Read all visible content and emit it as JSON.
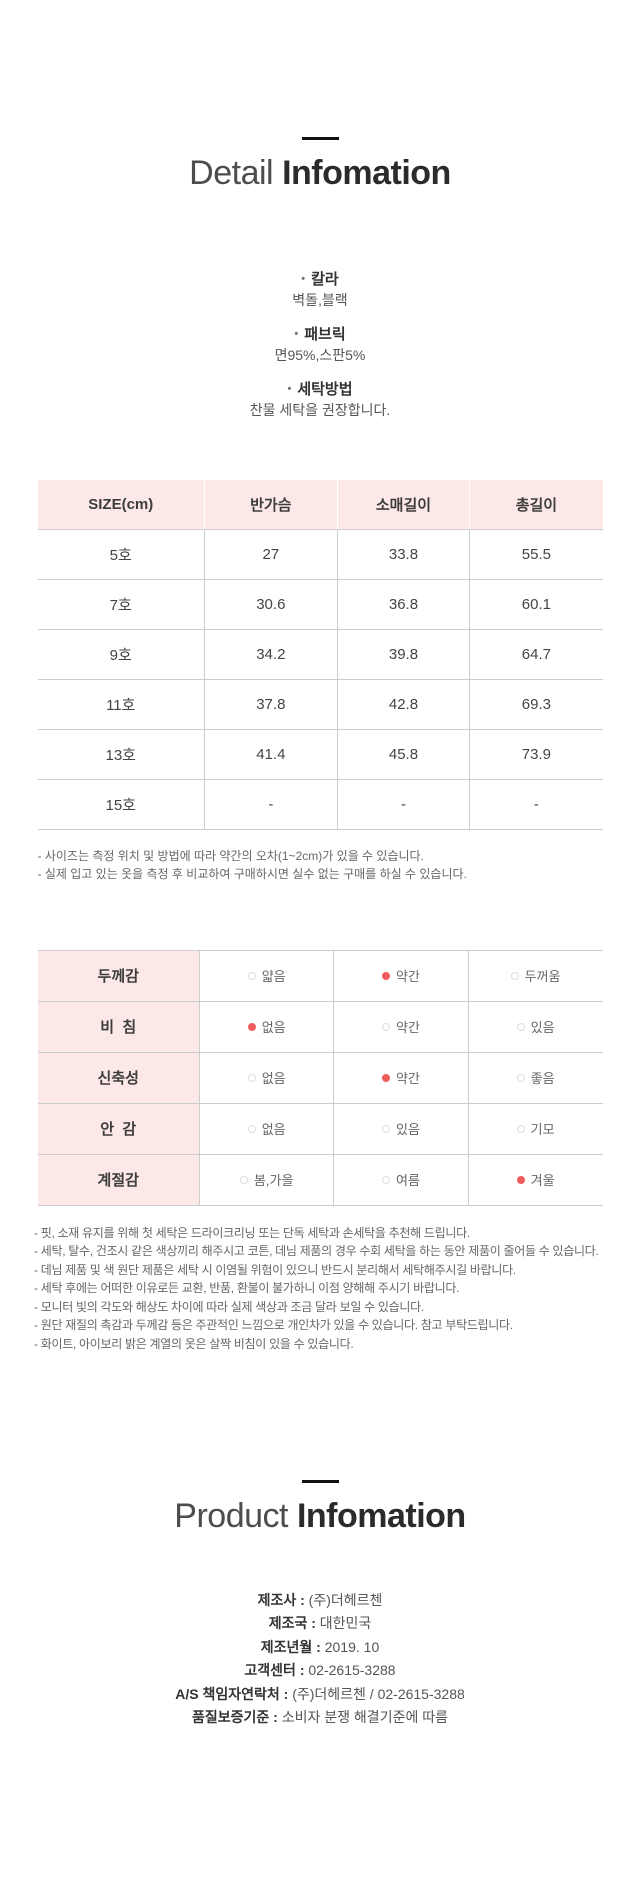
{
  "ui": {
    "bullet_char": "•"
  },
  "detail_section": {
    "title_light": "Detail",
    "title_bold": "Infomation",
    "bullets": [
      {
        "label": "칼라",
        "value": "벽돌,블랙"
      },
      {
        "label": "패브릭",
        "value": "면95%,스판5%"
      },
      {
        "label": "세탁방법",
        "value": "찬물 세탁을 권장합니다."
      }
    ]
  },
  "size_table": {
    "headers": [
      "SIZE(cm)",
      "반가슴",
      "소매길이",
      "총길이"
    ],
    "rows": [
      [
        "5호",
        "27",
        "33.8",
        "55.5"
      ],
      [
        "7호",
        "30.6",
        "36.8",
        "60.1"
      ],
      [
        "9호",
        "34.2",
        "39.8",
        "64.7"
      ],
      [
        "11호",
        "37.8",
        "42.8",
        "69.3"
      ],
      [
        "13호",
        "41.4",
        "45.8",
        "73.9"
      ],
      [
        "15호",
        "-",
        "-",
        "-"
      ]
    ],
    "notes": [
      "- 사이즈는 측정 위치 및 방법에 따라 약간의 오차(1~2cm)가 있을 수 있습니다.",
      "- 실제 입고 있는 옷을 측정 후 비교하여 구매하시면 실수 없는 구매를 하실 수 있습니다."
    ]
  },
  "attribute_table": {
    "rows": [
      {
        "label": "두께감",
        "options": [
          "얇음",
          "약간",
          "두꺼움"
        ],
        "selected": 1
      },
      {
        "label": "비  침",
        "options": [
          "없음",
          "약간",
          "있음"
        ],
        "selected": 0
      },
      {
        "label": "신축성",
        "options": [
          "없음",
          "약간",
          "좋음"
        ],
        "selected": 1
      },
      {
        "label": "안  감",
        "options": [
          "없음",
          "있음",
          "기모"
        ],
        "selected": null
      },
      {
        "label": "계절감",
        "options": [
          "봄,가을",
          "여름",
          "겨울"
        ],
        "selected": 2
      }
    ],
    "notes": [
      "- 핏, 소재 유지를 위해 첫 세탁은 드라이크리닝 또는 단독 세탁과 손세탁을 추천해 드립니다.",
      "- 세탁, 탈수, 건조시 같은 색상끼리 해주시고 코튼, 데님 제품의 경우 수회 세탁을 하는 동안 제품이 줄어들 수 있습니다.",
      "- 데님 제품 및 색 원단 제품은 세탁 시 이염될 위험이 있으니 반드시 분리해서 세탁해주시길 바랍니다.",
      "- 세탁 후에는 어떠한 이유로든 교환, 반품, 환불이 불가하니 이점 양해해 주시기 바랍니다.",
      "- 모니터 빛의 각도와 해상도 차이에 따라 실제 색상과 조금 달라 보일 수 있습니다.",
      "- 원단 재질의 촉감과 두께감 등은 주관적인 느낌으로 개인차가 있을 수 있습니다. 참고 부탁드립니다.",
      "- 화이트, 아이보리 밝은 계열의 옷은 살짝 비침이 있을 수 있습니다."
    ]
  },
  "product_section": {
    "title_light": "Product",
    "title_bold": "Infomation",
    "separator": " : ",
    "info": [
      {
        "label": "제조사",
        "value": "(주)더헤르첸"
      },
      {
        "label": "제조국",
        "value": "대한민국"
      },
      {
        "label": "제조년월",
        "value": "2019. 10"
      },
      {
        "label": "고객센터",
        "value": "02-2615-3288"
      },
      {
        "label": "A/S 책임자연락처",
        "value": "(주)더헤르첸 / 02-2615-3288"
      },
      {
        "label": "품질보증기준",
        "value": "소비자 분쟁 해결기준에 따름"
      }
    ]
  },
  "colors": {
    "header_pink": "#fce9e7",
    "radio_red": "#f15c5c",
    "table_border": "#cccccc",
    "title_dark": "#2b2b2b"
  }
}
